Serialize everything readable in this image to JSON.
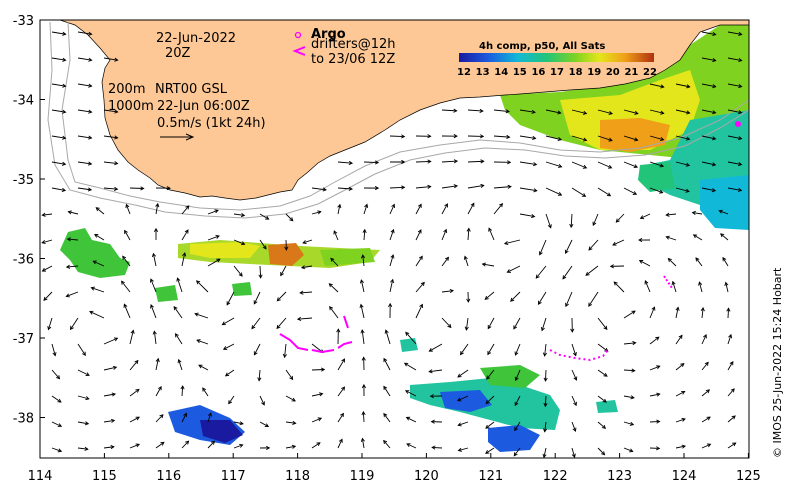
{
  "map": {
    "lon_ticks": [
      "114",
      "115",
      "116",
      "117",
      "118",
      "119",
      "120",
      "121",
      "122",
      "123",
      "124",
      "125"
    ],
    "lat_ticks": [
      "-33",
      "-34",
      "-35",
      "-36",
      "-37",
      "-38"
    ],
    "date_label": "22-Jun-2022",
    "time_label": "20Z",
    "contour_200m": "200m",
    "contour_1000m": "1000m",
    "product": "NRT00 GSL",
    "product_time": "22-Jun 06:00Z",
    "speed_scale": "0.5m/s (1kt 24h)",
    "argo_label": "Argo",
    "drifters_label": "drifters@12h",
    "drifters_to": "to 23/06 12Z",
    "colorbar_title": "4h comp, p50, All Sats",
    "colorbar_ticks": [
      "12",
      "13",
      "14",
      "15",
      "16",
      "17",
      "18",
      "19",
      "20",
      "21",
      "22"
    ],
    "credit": "© IMOS 25-Jun-2022 15:24 Hobart",
    "colors": {
      "land": "#fdc896",
      "argo": "#ff00ff",
      "contour": "#a8a8a8"
    }
  }
}
